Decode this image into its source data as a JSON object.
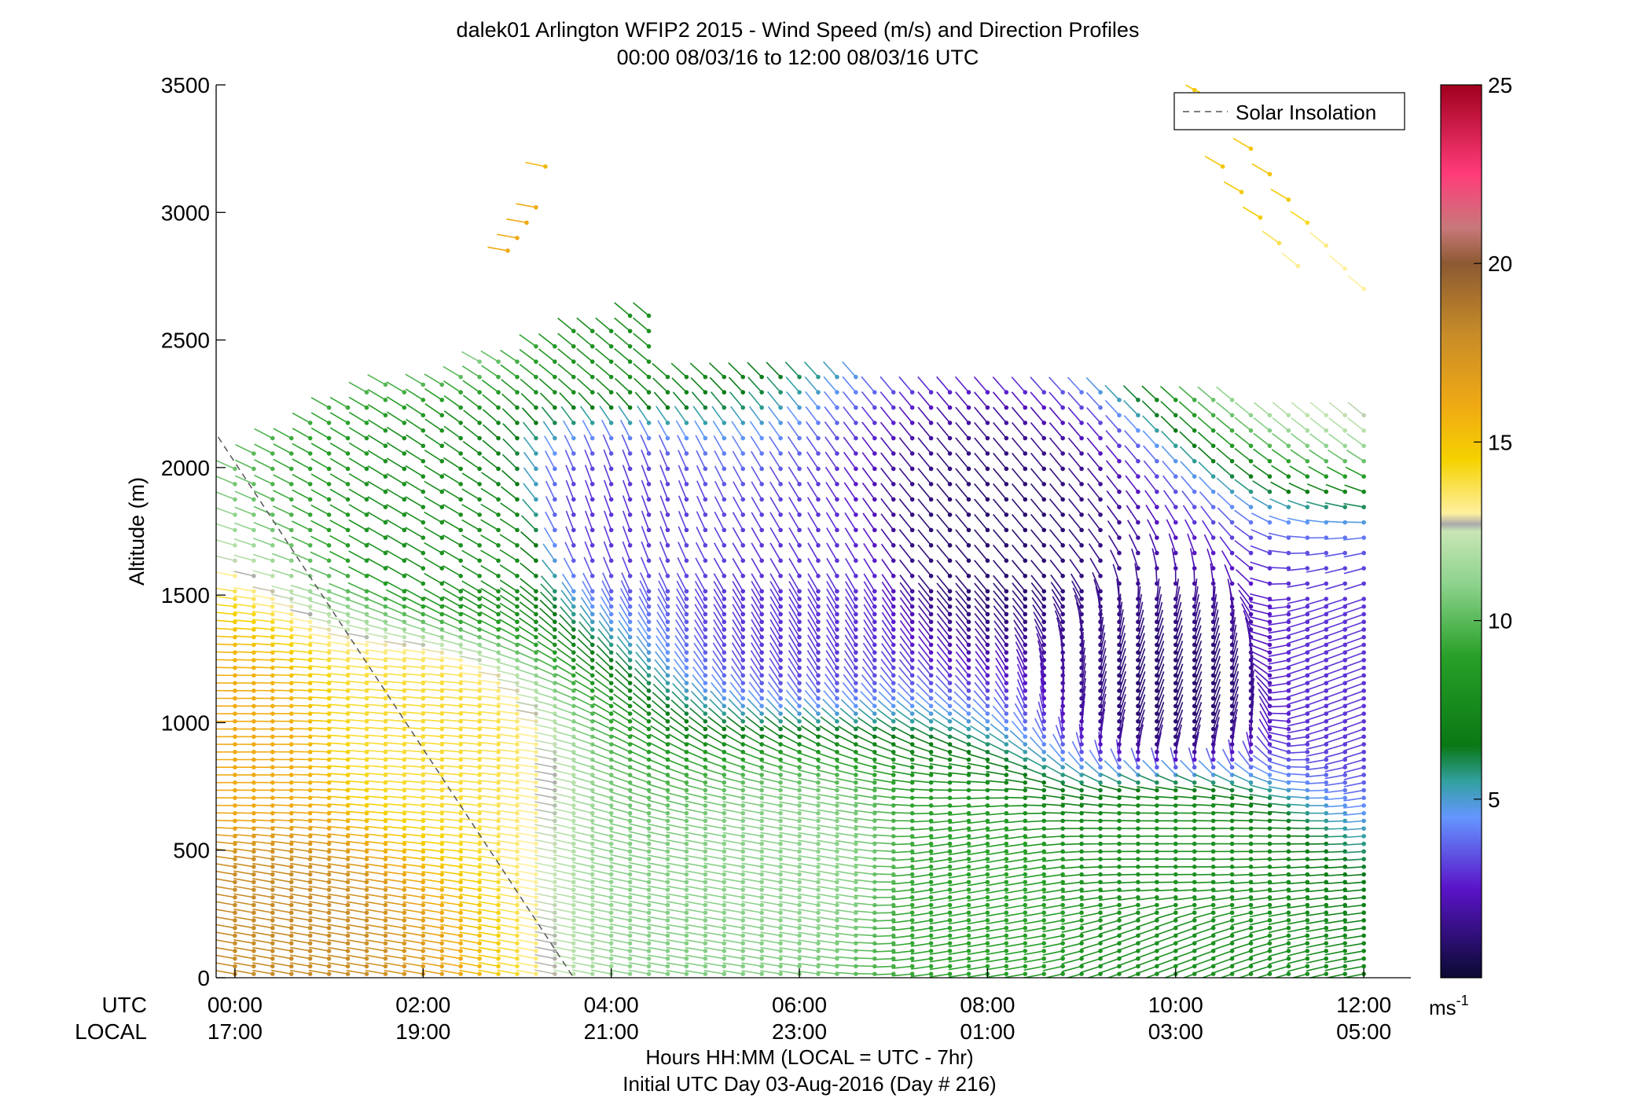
{
  "chart_data": {
    "type": "wind_barb_profile",
    "title": "dalek01 Arlington WFIP2 2015 - Wind Speed (m/s) and Direction Profiles",
    "subtitle": "00:00 08/03/16 to 12:00 08/03/16  UTC",
    "ylabel": "Altitude (m)",
    "xlabel": "Hours HH:MM  (LOCAL = UTC - 7hr)",
    "xlabel2": "Initial UTC Day 03-Aug-2016 (Day # 216)",
    "xlim_hours_utc": [
      -0.2,
      12.5
    ],
    "ylim": [
      0,
      3500
    ],
    "y_ticks": [
      0,
      500,
      1000,
      1500,
      2000,
      2500,
      3000,
      3500
    ],
    "x_ticks": [
      {
        "hour": 0,
        "utc": "00:00",
        "local": "17:00"
      },
      {
        "hour": 2,
        "utc": "02:00",
        "local": "19:00"
      },
      {
        "hour": 4,
        "utc": "04:00",
        "local": "21:00"
      },
      {
        "hour": 6,
        "utc": "06:00",
        "local": "23:00"
      },
      {
        "hour": 8,
        "utc": "08:00",
        "local": "01:00"
      },
      {
        "hour": 10,
        "utc": "10:00",
        "local": "03:00"
      },
      {
        "hour": 12,
        "utc": "12:00",
        "local": "05:00"
      }
    ],
    "row_label_utc": "UTC",
    "row_label_local": "LOCAL",
    "legend": {
      "entries": [
        "Solar Insolation"
      ],
      "placement": "top-right"
    },
    "solar_insolation_line": {
      "style": "dashed",
      "color": "#555555",
      "points": [
        {
          "hour": -0.5,
          "alt": 2300
        },
        {
          "hour": 3.6,
          "alt": 0
        }
      ]
    },
    "colorbar": {
      "min": 0,
      "max": 25,
      "ticks": [
        5,
        10,
        15,
        20,
        25
      ],
      "unit": "ms",
      "unit_superscript": "-1",
      "stops": [
        {
          "v": 0,
          "c": "#0a0a32"
        },
        {
          "v": 2.5,
          "c": "#5a14c8"
        },
        {
          "v": 4.5,
          "c": "#6496ff"
        },
        {
          "v": 5.5,
          "c": "#32a0a0"
        },
        {
          "v": 6.5,
          "c": "#0a7814"
        },
        {
          "v": 9,
          "c": "#28a028"
        },
        {
          "v": 11,
          "c": "#8cd28c"
        },
        {
          "v": 12.5,
          "c": "#c8e6b4"
        },
        {
          "v": 12.7,
          "c": "#aaaaaa"
        },
        {
          "v": 13,
          "c": "#fff0a0"
        },
        {
          "v": 14.5,
          "c": "#f5d200"
        },
        {
          "v": 16,
          "c": "#f0aa14"
        },
        {
          "v": 18,
          "c": "#c88c28"
        },
        {
          "v": 20,
          "c": "#8c5a32"
        },
        {
          "v": 21,
          "c": "#c8787a"
        },
        {
          "v": 22.5,
          "c": "#ff3c7a"
        },
        {
          "v": 25,
          "c": "#a0001e"
        }
      ]
    },
    "grid": false,
    "barb_time_step_hours": 0.2,
    "barb_altitude_step_m": 30,
    "observed_points": [
      {
        "hour": 0.0,
        "alt": 900,
        "speed": 16,
        "dir_from": 270
      },
      {
        "hour": 0.4,
        "alt": 200,
        "speed": 18,
        "dir_from": 280
      },
      {
        "hour": 2.0,
        "alt": 1000,
        "speed": 14,
        "dir_from": 275
      },
      {
        "hour": 2.5,
        "alt": 1700,
        "speed": 8,
        "dir_from": 300
      },
      {
        "hour": 3.0,
        "alt": 2900,
        "speed": 16,
        "dir_from": 280
      },
      {
        "hour": 4.0,
        "alt": 2600,
        "speed": 8,
        "dir_from": 310
      },
      {
        "hour": 4.0,
        "alt": 1800,
        "speed": 3,
        "dir_from": 340
      },
      {
        "hour": 6.0,
        "alt": 1500,
        "speed": 3,
        "dir_from": 330
      },
      {
        "hour": 6.0,
        "alt": 400,
        "speed": 11,
        "dir_from": 280
      },
      {
        "hour": 8.0,
        "alt": 1700,
        "speed": 1,
        "dir_from": 320
      },
      {
        "hour": 8.0,
        "alt": 300,
        "speed": 9,
        "dir_from": 260
      },
      {
        "hour": 10.0,
        "alt": 1100,
        "speed": 1,
        "dir_from": 20
      },
      {
        "hour": 10.0,
        "alt": 500,
        "speed": 8,
        "dir_from": 270
      },
      {
        "hour": 10.0,
        "alt": 100,
        "speed": 8,
        "dir_from": 250
      },
      {
        "hour": 11.0,
        "alt": 3300,
        "speed": 15,
        "dir_from": 300
      },
      {
        "hour": 12.0,
        "alt": 2600,
        "speed": 13,
        "dir_from": 310
      },
      {
        "hour": 12.0,
        "alt": 1200,
        "speed": 3,
        "dir_from": 250
      }
    ]
  }
}
